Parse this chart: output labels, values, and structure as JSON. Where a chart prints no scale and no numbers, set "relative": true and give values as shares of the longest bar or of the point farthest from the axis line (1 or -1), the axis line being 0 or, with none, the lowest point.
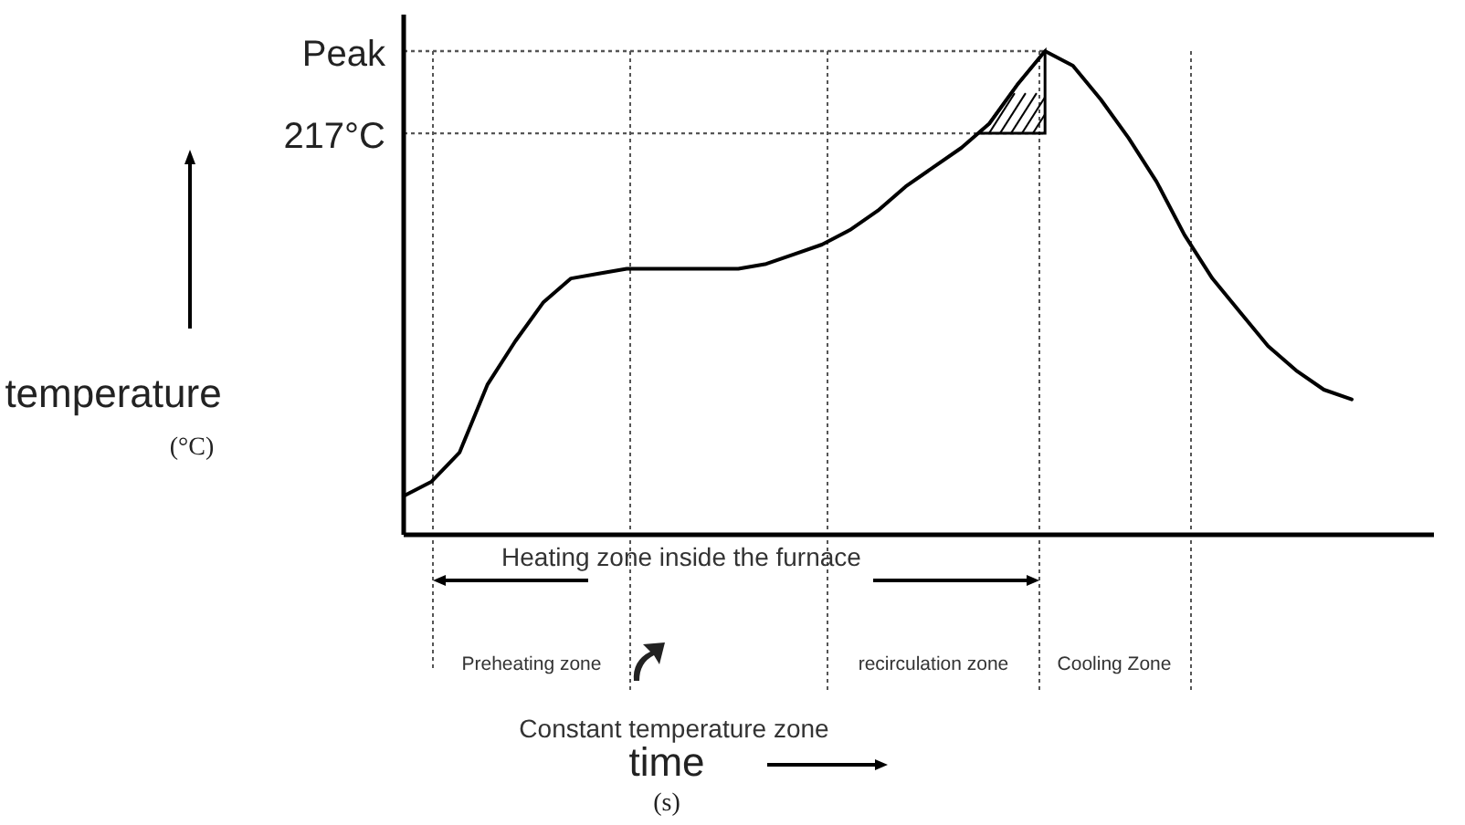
{
  "chart_data": {
    "type": "line",
    "relative": true,
    "ylabel": "temperature (°C)",
    "categories": [
      null,
      null,
      null,
      null,
      null,
      null,
      null,
      null,
      null,
      null,
      null,
      null,
      null,
      null,
      null,
      null,
      null,
      null,
      null,
      null,
      null,
      null,
      null,
      null,
      null,
      null,
      null,
      null,
      null,
      null,
      null,
      null,
      null,
      null,
      null
    ],
    "series": [
      {
        "color": "#000000",
        "values": [
          0.08,
          0.11,
          0.17,
          0.31,
          0.4,
          0.48,
          0.53,
          0.54,
          0.55,
          0.55,
          0.55,
          0.55,
          0.55,
          0.56,
          0.58,
          0.6,
          0.63,
          0.67,
          0.72,
          0.76,
          0.8,
          0.85,
          0.93,
          1,
          0.97,
          0.9,
          0.82,
          0.73,
          0.62,
          0.53,
          0.46,
          0.39,
          0.34,
          0.3,
          0.28
        ]
      }
    ],
    "marker": "none",
    "line_style": "solid",
    "ref_lines": [
      {
        "axis": "y",
        "value": 1,
        "label": "Peak",
        "line_style": "dotted"
      },
      {
        "axis": "y",
        "value": 0.83,
        "label": "217°C",
        "line_style": "dotted"
      }
    ],
    "annotations": [
      "Heating zone inside the furnace",
      "Preheating zone",
      "Constant temperature zone",
      "recirculation zone",
      "Cooling Zone",
      "time (s)"
    ]
  }
}
